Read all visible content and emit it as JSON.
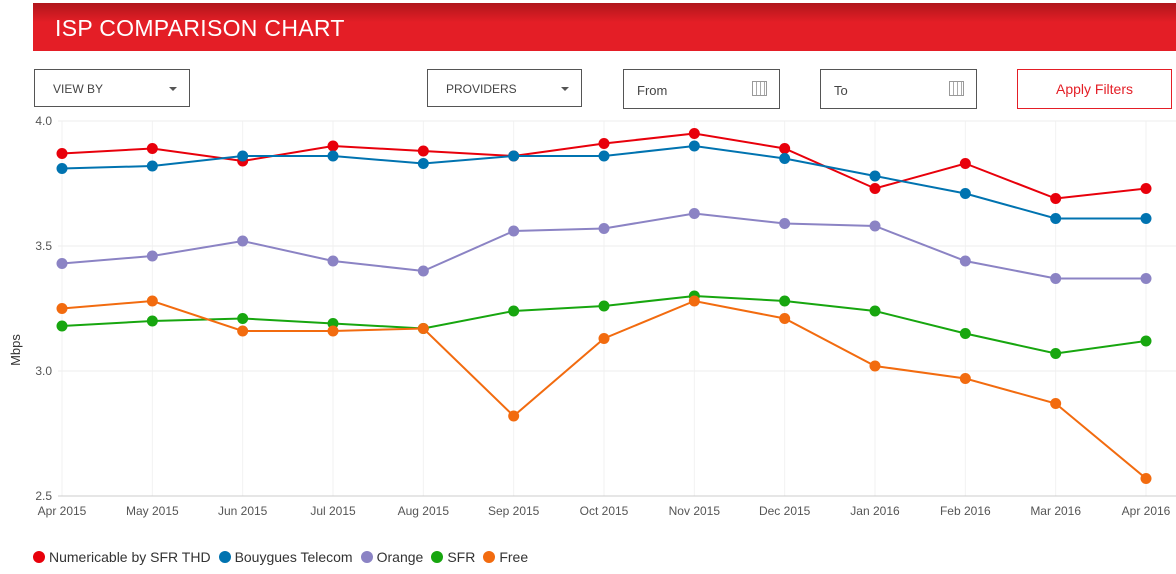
{
  "header": {
    "title": "ISP COMPARISON CHART"
  },
  "filters": {
    "view_by": "VIEW BY",
    "providers": "PROVIDERS",
    "from": "From",
    "to": "To",
    "apply": "Apply Filters"
  },
  "chart_data": {
    "type": "line",
    "ylabel": "Mbps",
    "ylim": [
      2.5,
      4.0
    ],
    "yticks": [
      "2.5",
      "3.0",
      "3.5",
      "4.0"
    ],
    "ytick_values": [
      2.5,
      3.0,
      3.5,
      4.0
    ],
    "categories": [
      "Apr 2015",
      "May 2015",
      "Jun 2015",
      "Jul 2015",
      "Aug 2015",
      "Sep 2015",
      "Oct 2015",
      "Nov 2015",
      "Dec 2015",
      "Jan 2016",
      "Feb 2016",
      "Mar 2016",
      "Apr 2016"
    ],
    "legend_position": "bottom-left",
    "series": [
      {
        "name": "Numericable by SFR THD",
        "color": "#e8000b",
        "values": [
          3.87,
          3.89,
          3.84,
          3.9,
          3.88,
          3.86,
          3.91,
          3.95,
          3.89,
          3.73,
          3.83,
          3.69,
          3.73
        ]
      },
      {
        "name": "Bouygues Telecom",
        "color": "#0073b0",
        "values": [
          3.81,
          3.82,
          3.86,
          3.86,
          3.83,
          3.86,
          3.86,
          3.9,
          3.85,
          3.78,
          3.71,
          3.61,
          3.61
        ]
      },
      {
        "name": "Orange",
        "color": "#8b83c4",
        "values": [
          3.43,
          3.46,
          3.52,
          3.44,
          3.4,
          3.56,
          3.57,
          3.63,
          3.59,
          3.58,
          3.44,
          3.37,
          3.37
        ]
      },
      {
        "name": "SFR",
        "color": "#17a60f",
        "values": [
          3.18,
          3.2,
          3.21,
          3.19,
          3.17,
          3.24,
          3.26,
          3.3,
          3.28,
          3.24,
          3.15,
          3.07,
          3.12
        ]
      },
      {
        "name": "Free",
        "color": "#f26b0f",
        "values": [
          3.25,
          3.28,
          3.16,
          3.16,
          3.17,
          2.82,
          3.13,
          3.28,
          3.21,
          3.02,
          2.97,
          2.87,
          2.57
        ]
      }
    ]
  }
}
